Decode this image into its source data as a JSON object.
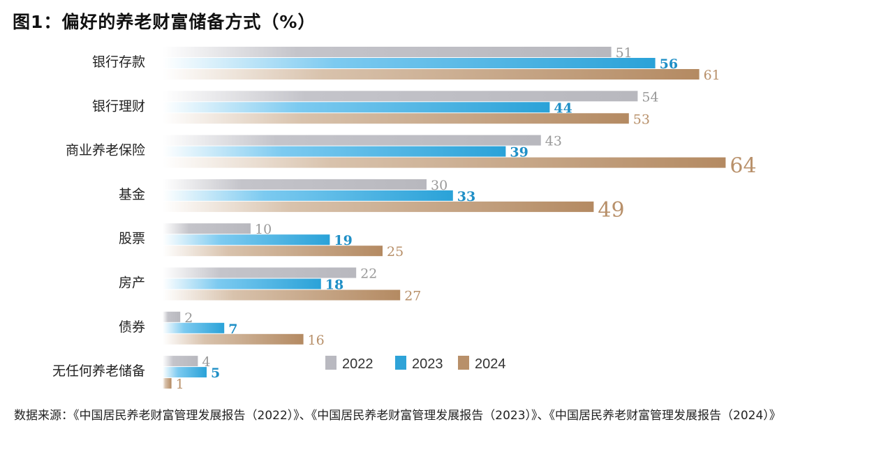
{
  "title": "图1：偏好的养老财富储备方式（%）",
  "source": "数据来源：《中国居民养老财富管理发展报告（2022）》、《中国居民养老财富管理发展报告（2023）》、《中国居民养老财富管理发展报告（2024）》",
  "chart_data": {
    "type": "bar",
    "orientation": "horizontal",
    "title": "图1：偏好的养老财富储备方式（%）",
    "categories": [
      "银行存款",
      "银行理财",
      "商业养老保险",
      "基金",
      "股票",
      "房产",
      "债券",
      "无任何养老储备"
    ],
    "series": [
      {
        "name": "2022",
        "color": "#b9b9c0",
        "values": [
          51,
          54,
          43,
          30,
          10,
          22,
          2,
          4
        ]
      },
      {
        "name": "2023",
        "color": "#2ea3d8",
        "values": [
          56,
          44,
          39,
          33,
          19,
          18,
          7,
          5
        ]
      },
      {
        "name": "2024",
        "color": "#b8906a",
        "values": [
          61,
          53,
          64,
          49,
          25,
          27,
          16,
          1
        ]
      }
    ],
    "label_colors": [
      "#999999",
      "#1f8fc6",
      "#b8906a"
    ],
    "xlim": [
      0,
      64
    ],
    "grid": false,
    "legend_position": "bottom-center"
  }
}
